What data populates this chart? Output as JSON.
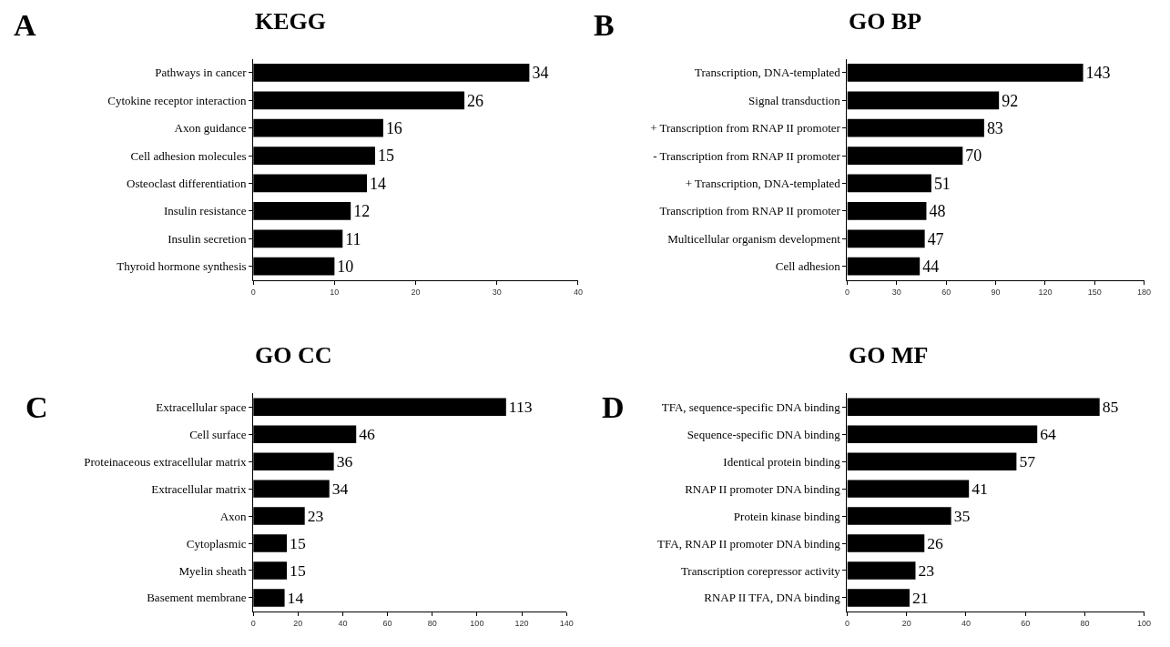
{
  "chart_data": [
    {
      "type": "bar",
      "orientation": "horizontal",
      "title": "KEGG",
      "annotations": [
        "A"
      ],
      "categories": [
        "Pathways in cancer",
        "Cytokine receptor interaction",
        "Axon guidance",
        "Cell adhesion molecules",
        "Osteoclast differentiation",
        "Insulin resistance",
        "Insulin secretion",
        "Thyroid hormone synthesis"
      ],
      "values": [
        34,
        26,
        16,
        15,
        14,
        12,
        11,
        10
      ],
      "color": "#000000",
      "xlim": [
        0,
        40
      ],
      "xticks": [
        0,
        10,
        20,
        30,
        40
      ],
      "data_labels": true,
      "grid": false
    },
    {
      "type": "bar",
      "orientation": "horizontal",
      "title": "GO BP",
      "annotations": [
        "B"
      ],
      "categories": [
        "Transcription, DNA-templated",
        "Signal transduction",
        "+ Transcription from RNAP II promoter",
        "- Transcription from RNAP II promoter",
        "+ Transcription, DNA-templated",
        "Transcription from RNAP II promoter",
        "Multicellular organism development",
        "Cell adhesion"
      ],
      "values": [
        143,
        92,
        83,
        70,
        51,
        48,
        47,
        44
      ],
      "color": "#000000",
      "xlim": [
        0,
        180
      ],
      "xticks": [
        0,
        30,
        60,
        90,
        120,
        150,
        180
      ],
      "data_labels": true,
      "grid": false
    },
    {
      "type": "bar",
      "orientation": "horizontal",
      "title": "GO CC",
      "annotations": [
        "C"
      ],
      "categories": [
        "Extracellular space",
        "Cell surface",
        "Proteinaceous extracellular matrix",
        "Extracellular matrix",
        "Axon",
        "Cytoplasmic",
        "Myelin sheath",
        "Basement membrane"
      ],
      "values": [
        113,
        46,
        36,
        34,
        23,
        15,
        15,
        14
      ],
      "color": "#000000",
      "xlim": [
        0,
        140
      ],
      "xticks": [
        0,
        20,
        40,
        60,
        80,
        100,
        120,
        140
      ],
      "data_labels": true,
      "grid": false
    },
    {
      "type": "bar",
      "orientation": "horizontal",
      "title": "GO MF",
      "annotations": [
        "D"
      ],
      "categories": [
        "TFA, sequence-specific DNA binding",
        "Sequence-specific DNA binding",
        "Identical protein binding",
        "RNAP II promoter DNA binding",
        "Protein kinase binding",
        "TFA, RNAP II promoter DNA binding",
        "Transcription corepressor activity",
        "RNAP II TFA, DNA binding"
      ],
      "values": [
        85,
        64,
        57,
        41,
        35,
        26,
        23,
        21
      ],
      "color": "#000000",
      "xlim": [
        0,
        100
      ],
      "xticks": [
        0,
        20,
        40,
        60,
        80,
        100
      ],
      "data_labels": true,
      "grid": false
    }
  ]
}
